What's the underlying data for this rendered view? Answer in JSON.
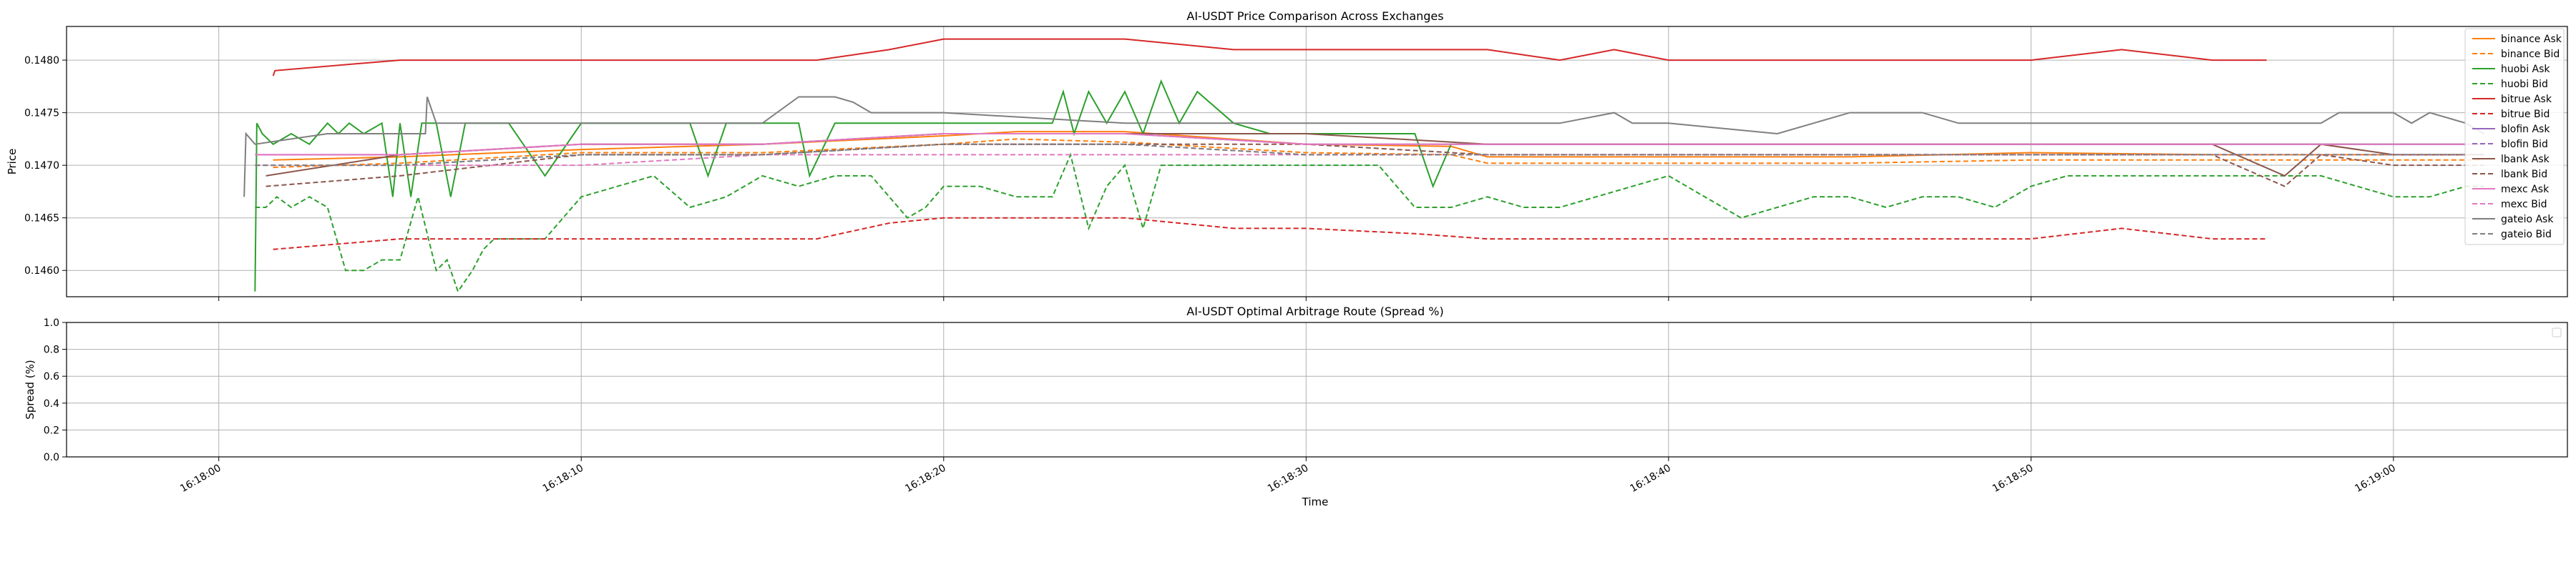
{
  "chart_data": [
    {
      "type": "line",
      "title": "AI-USDT Price Comparison Across Exchanges",
      "xlabel": "",
      "ylabel": "Price",
      "ylim": [
        0.14575,
        0.14832
      ],
      "xlim": [
        -4.2,
        64.8
      ],
      "yticks": [
        "0.1460",
        "0.1465",
        "0.1470",
        "0.1475",
        "0.1480"
      ],
      "grid": true,
      "legend": "right, outside plot area",
      "series": [
        {
          "name": "binance Ask",
          "color": "#ff7f0e",
          "dash": false,
          "x": [
            1.5,
            5,
            10,
            15,
            20,
            22,
            25,
            30,
            34,
            35,
            40,
            45,
            50,
            55,
            60,
            62.5
          ],
          "y": [
            0.14705,
            0.14708,
            0.14715,
            0.1472,
            0.14728,
            0.14732,
            0.14732,
            0.1472,
            0.14718,
            0.14708,
            0.14708,
            0.14708,
            0.14712,
            0.1471,
            0.1471,
            0.1471
          ]
        },
        {
          "name": "binance Bid",
          "color": "#ff7f0e",
          "dash": true,
          "x": [
            1.5,
            5,
            10,
            15,
            20,
            22,
            25,
            30,
            34,
            35,
            40,
            45,
            50,
            55,
            60,
            62.5
          ],
          "y": [
            0.14698,
            0.14702,
            0.14712,
            0.14712,
            0.1472,
            0.14725,
            0.14722,
            0.14712,
            0.1471,
            0.14702,
            0.14702,
            0.14702,
            0.14705,
            0.14705,
            0.14705,
            0.14705
          ]
        },
        {
          "name": "huobi Ask",
          "color": "#2ca02c",
          "dash": false,
          "x": [
            1.0,
            1.05,
            1.2,
            1.5,
            2.0,
            2.5,
            3.0,
            3.3,
            3.6,
            4.0,
            4.5,
            4.8,
            5.0,
            5.3,
            5.6,
            6.0,
            6.4,
            6.8,
            7.0,
            7.4,
            8.0,
            9.0,
            10,
            11,
            12,
            13,
            13.5,
            14,
            15,
            16,
            16.3,
            17,
            18,
            19,
            20,
            21,
            22,
            23,
            23.3,
            23.6,
            24,
            24.5,
            25,
            25.5,
            26,
            26.5,
            27,
            28,
            29,
            30,
            31,
            32,
            33,
            33.5,
            34,
            35,
            36,
            37,
            38,
            39,
            40,
            41,
            42,
            43,
            44,
            45,
            46,
            47,
            48,
            49,
            50,
            51,
            52,
            53,
            54,
            55,
            56,
            57,
            58,
            59,
            60,
            62.5
          ],
          "y": [
            0.1458,
            0.1474,
            0.1473,
            0.1472,
            0.1473,
            0.1472,
            0.1474,
            0.1473,
            0.1474,
            0.1473,
            0.1474,
            0.1467,
            0.1474,
            0.1467,
            0.1474,
            0.1474,
            0.1467,
            0.1474,
            0.1474,
            0.1474,
            0.1474,
            0.1469,
            0.1474,
            0.1474,
            0.1474,
            0.1474,
            0.1469,
            0.1474,
            0.1474,
            0.1474,
            0.1469,
            0.1474,
            0.1474,
            0.1474,
            0.1474,
            0.1474,
            0.1474,
            0.1474,
            0.1477,
            0.1473,
            0.1477,
            0.1474,
            0.1477,
            0.1473,
            0.1478,
            0.1474,
            0.1477,
            0.1474,
            0.1473,
            0.1473,
            0.1473,
            0.1473,
            0.1473,
            0.1468,
            0.1472,
            0.1472,
            0.1472,
            0.1472,
            0.1472,
            0.1472,
            0.1472,
            0.1472,
            0.1472,
            0.1472,
            0.1472,
            0.1472,
            0.1472,
            0.1472,
            0.1472,
            0.1472,
            0.1472,
            0.1472,
            0.1472,
            0.1472,
            0.1472,
            0.1472,
            0.1472,
            0.1472,
            0.1472,
            0.1472,
            0.1472,
            0.1472
          ]
        },
        {
          "name": "huobi Bid",
          "color": "#2ca02c",
          "dash": true,
          "x": [
            1.0,
            1.3,
            1.6,
            2.0,
            2.5,
            3.0,
            3.5,
            4.0,
            4.5,
            5.0,
            5.5,
            6.0,
            6.3,
            6.6,
            7.0,
            7.3,
            7.6,
            8.0,
            8.5,
            9.0,
            10,
            11,
            12,
            13,
            14,
            15,
            16,
            17,
            18,
            19,
            19.5,
            20,
            21,
            22,
            23,
            23.5,
            24,
            24.5,
            25,
            25.5,
            26,
            27,
            28,
            29,
            30,
            31,
            32,
            33,
            34,
            35,
            36,
            37,
            38,
            39,
            40,
            41,
            42,
            43,
            44,
            45,
            46,
            47,
            48,
            49,
            50,
            51,
            52,
            53,
            54,
            55,
            56,
            57,
            58,
            59,
            60,
            61,
            62,
            62.5
          ],
          "y": [
            0.1466,
            0.1466,
            0.1467,
            0.1466,
            0.1467,
            0.1466,
            0.146,
            0.146,
            0.1461,
            0.1461,
            0.1467,
            0.146,
            0.1461,
            0.1458,
            0.146,
            0.1462,
            0.1463,
            0.1463,
            0.1463,
            0.1463,
            0.1467,
            0.1468,
            0.1469,
            0.1466,
            0.1467,
            0.1469,
            0.1468,
            0.1469,
            0.1469,
            0.1465,
            0.1466,
            0.1468,
            0.1468,
            0.1467,
            0.1467,
            0.1471,
            0.1464,
            0.1468,
            0.147,
            0.1464,
            0.147,
            0.147,
            0.147,
            0.147,
            0.147,
            0.147,
            0.147,
            0.1466,
            0.1466,
            0.1467,
            0.1466,
            0.1466,
            0.1467,
            0.1468,
            0.1469,
            0.1467,
            0.1465,
            0.1466,
            0.1467,
            0.1467,
            0.1466,
            0.1467,
            0.1467,
            0.1466,
            0.1468,
            0.1469,
            0.1469,
            0.1469,
            0.1469,
            0.1469,
            0.1469,
            0.1469,
            0.1469,
            0.1468,
            0.1467,
            0.1467,
            0.1468,
            0.1468
          ]
        },
        {
          "name": "bitrue Ask",
          "color": "#d62728",
          "dash": false,
          "x": [
            1.5,
            1.55,
            5,
            10,
            15,
            16.5,
            18.5,
            20,
            25,
            28,
            30,
            33,
            35,
            37,
            38.5,
            40,
            45,
            50,
            52.5,
            55,
            56.5
          ],
          "y": [
            0.14785,
            0.1479,
            0.148,
            0.148,
            0.148,
            0.148,
            0.1481,
            0.1482,
            0.1482,
            0.1481,
            0.1481,
            0.1481,
            0.1481,
            0.148,
            0.1481,
            0.148,
            0.148,
            0.148,
            0.1481,
            0.148,
            0.148
          ]
        },
        {
          "name": "bitrue Bid",
          "color": "#d62728",
          "dash": true,
          "x": [
            1.5,
            5,
            10,
            15,
            16.5,
            18.5,
            20,
            25,
            28,
            30,
            33,
            35,
            37,
            40,
            45,
            50,
            52.5,
            55,
            56.5
          ],
          "y": [
            0.1462,
            0.1463,
            0.1463,
            0.1463,
            0.1463,
            0.14645,
            0.1465,
            0.1465,
            0.1464,
            0.1464,
            0.14635,
            0.1463,
            0.1463,
            0.1463,
            0.1463,
            0.1463,
            0.1464,
            0.1463,
            0.1463
          ]
        },
        {
          "name": "blofin Ask",
          "color": "#9467bd",
          "dash": false,
          "x": [
            1.0,
            5,
            10,
            15,
            20,
            25,
            30,
            35,
            40,
            45,
            50,
            55,
            60,
            62.5
          ],
          "y": [
            0.1471,
            0.1471,
            0.1472,
            0.1472,
            0.1473,
            0.1473,
            0.1472,
            0.1472,
            0.1472,
            0.1472,
            0.1472,
            0.1472,
            0.1472,
            0.1472
          ]
        },
        {
          "name": "blofin Bid",
          "color": "#9467bd",
          "dash": true,
          "x": [
            1.0,
            5,
            10,
            15,
            20,
            25,
            30,
            35,
            40,
            45,
            50,
            55,
            60,
            62.5
          ],
          "y": [
            0.147,
            0.147,
            0.1471,
            0.1471,
            0.1472,
            0.1472,
            0.1471,
            0.1471,
            0.1471,
            0.1471,
            0.1471,
            0.1471,
            0.1471,
            0.1471
          ]
        },
        {
          "name": "lbank Ask",
          "color": "#8c564b",
          "dash": false,
          "x": [
            1.3,
            5,
            10,
            15,
            20,
            25,
            30,
            35,
            40,
            45,
            50,
            55,
            57,
            58,
            60,
            62.5
          ],
          "y": [
            0.1469,
            0.1471,
            0.1472,
            0.1472,
            0.1473,
            0.1473,
            0.1473,
            0.1472,
            0.1472,
            0.1472,
            0.1472,
            0.1472,
            0.1469,
            0.1472,
            0.1471,
            0.1471
          ]
        },
        {
          "name": "lbank Bid",
          "color": "#8c564b",
          "dash": true,
          "x": [
            1.3,
            5,
            10,
            15,
            20,
            25,
            30,
            35,
            40,
            45,
            50,
            55,
            57,
            58,
            60,
            62.5
          ],
          "y": [
            0.1468,
            0.1469,
            0.1471,
            0.1471,
            0.1472,
            0.1472,
            0.1472,
            0.1471,
            0.1471,
            0.1471,
            0.1471,
            0.1471,
            0.1468,
            0.1471,
            0.147,
            0.147
          ]
        },
        {
          "name": "mexc Ask",
          "color": "#e377c2",
          "dash": false,
          "x": [
            1.0,
            5,
            10,
            15,
            20,
            25,
            30,
            35,
            40,
            45,
            50,
            55,
            60,
            62.5
          ],
          "y": [
            0.1471,
            0.1471,
            0.1472,
            0.1472,
            0.1473,
            0.1473,
            0.1472,
            0.1472,
            0.1472,
            0.1472,
            0.1472,
            0.1472,
            0.1472,
            0.1472
          ]
        },
        {
          "name": "mexc Bid",
          "color": "#e377c2",
          "dash": true,
          "x": [
            1.0,
            5,
            10,
            15,
            20,
            25,
            30,
            35,
            40,
            45,
            50,
            55,
            60,
            62.5
          ],
          "y": [
            0.147,
            0.147,
            0.147,
            0.1471,
            0.1471,
            0.1471,
            0.1471,
            0.1471,
            0.1471,
            0.1471,
            0.1471,
            0.1471,
            0.1471,
            0.1471
          ]
        },
        {
          "name": "gateio Ask",
          "color": "#7f7f7f",
          "dash": false,
          "x": [
            0.7,
            0.75,
            1.0,
            3.0,
            5.7,
            5.75,
            6.0,
            10,
            15,
            16,
            17,
            17.5,
            18,
            20,
            25,
            28,
            30,
            33,
            35,
            37,
            38.5,
            39,
            40,
            43,
            44,
            45,
            47,
            48,
            50,
            51,
            52,
            55,
            56,
            57,
            58,
            58.5,
            59,
            60,
            60.5,
            61,
            62,
            62.5
          ],
          "y": [
            0.1467,
            0.1473,
            0.1472,
            0.1473,
            0.1473,
            0.14765,
            0.1474,
            0.1474,
            0.1474,
            0.14765,
            0.14765,
            0.1476,
            0.1475,
            0.1475,
            0.1474,
            0.1474,
            0.1474,
            0.1474,
            0.1474,
            0.1474,
            0.1475,
            0.1474,
            0.1474,
            0.1473,
            0.1474,
            0.1475,
            0.1475,
            0.1474,
            0.1474,
            0.1474,
            0.1474,
            0.1474,
            0.1474,
            0.1474,
            0.1474,
            0.1475,
            0.1475,
            0.1475,
            0.1474,
            0.1475,
            0.1474,
            0.1473
          ]
        },
        {
          "name": "gateio Bid",
          "color": "#7f7f7f",
          "dash": true,
          "x": [
            1.0,
            5,
            10,
            15,
            20,
            25,
            30,
            35,
            40,
            45,
            50,
            55,
            60,
            62.5
          ],
          "y": [
            0.147,
            0.147,
            0.1471,
            0.1471,
            0.1472,
            0.1472,
            0.1471,
            0.1471,
            0.1471,
            0.1471,
            0.1471,
            0.1471,
            0.1471,
            0.1471
          ]
        }
      ]
    },
    {
      "type": "line",
      "title": "AI-USDT Optimal Arbitrage Route (Spread %)",
      "xlabel": "Time",
      "ylabel": "Spread (%)",
      "ylim": [
        0.0,
        1.0
      ],
      "yticks": [
        "0.0",
        "0.2",
        "0.4",
        "0.6",
        "0.8",
        "1.0"
      ],
      "xlim": [
        -4.2,
        64.8
      ],
      "xticks": [
        "16:18:00",
        "16:18:10",
        "16:18:20",
        "16:18:30",
        "16:18:40",
        "16:18:50",
        "16:19:00"
      ],
      "xtick_values": [
        0,
        10,
        20,
        30,
        40,
        50,
        60
      ],
      "grid": true,
      "legend": "top-right (empty)",
      "series": []
    }
  ]
}
